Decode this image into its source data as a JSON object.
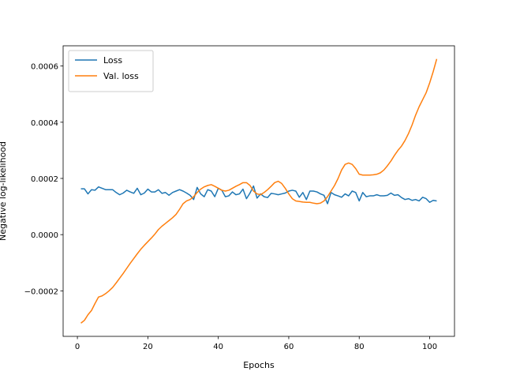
{
  "chart_data": {
    "type": "line",
    "xlabel": "Epochs",
    "ylabel": "Negative log-likelihood",
    "x": [
      1,
      2,
      3,
      4,
      5,
      6,
      7,
      8,
      9,
      10,
      11,
      12,
      13,
      14,
      15,
      16,
      17,
      18,
      19,
      20,
      21,
      22,
      23,
      24,
      25,
      26,
      27,
      28,
      29,
      30,
      31,
      32,
      33,
      34,
      35,
      36,
      37,
      38,
      39,
      40,
      41,
      42,
      43,
      44,
      45,
      46,
      47,
      48,
      49,
      50,
      51,
      52,
      53,
      54,
      55,
      56,
      57,
      58,
      59,
      60,
      61,
      62,
      63,
      64,
      65,
      66,
      67,
      68,
      69,
      70,
      71,
      72,
      73,
      74,
      75,
      76,
      77,
      78,
      79,
      80,
      81,
      82,
      83,
      84,
      85,
      86,
      87,
      88,
      89,
      90,
      91,
      92,
      93,
      94,
      95,
      96,
      97,
      98,
      99,
      100,
      101,
      102
    ],
    "series": [
      {
        "name": "Loss",
        "color": "#1f77b4",
        "values": [
          0.000163,
          0.000163,
          0.000145,
          0.00016,
          0.000158,
          0.00017,
          0.000165,
          0.00016,
          0.00016,
          0.00016,
          0.00015,
          0.000142,
          0.000148,
          0.000158,
          0.000152,
          0.000147,
          0.000165,
          0.000142,
          0.000148,
          0.000162,
          0.000152,
          0.000152,
          0.00016,
          0.000147,
          0.00015,
          0.00014,
          0.00015,
          0.000155,
          0.00016,
          0.000155,
          0.000148,
          0.00014,
          0.000125,
          0.000168,
          0.000145,
          0.000135,
          0.00016,
          0.000155,
          0.000135,
          0.000165,
          0.000158,
          0.000135,
          0.000138,
          0.000152,
          0.000142,
          0.000145,
          0.000162,
          0.000128,
          0.000148,
          0.000173,
          0.00013,
          0.000145,
          0.000135,
          0.000132,
          0.000147,
          0.000145,
          0.000142,
          0.000145,
          0.000148,
          0.000155,
          0.000158,
          0.000155,
          0.000133,
          0.00015,
          0.000125,
          0.000155,
          0.000155,
          0.000152,
          0.000145,
          0.00014,
          0.00011,
          0.00015,
          0.000142,
          0.000138,
          0.000133,
          0.000145,
          0.000138,
          0.000155,
          0.00015,
          0.00012,
          0.00015,
          0.000135,
          0.000138,
          0.000138,
          0.000142,
          0.000138,
          0.000138,
          0.00014,
          0.000148,
          0.00014,
          0.000142,
          0.000132,
          0.000125,
          0.000128,
          0.000122,
          0.000125,
          0.00012,
          0.000133,
          0.000128,
          0.000115,
          0.000122,
          0.00012
        ]
      },
      {
        "name": "Val. loss",
        "color": "#ff7f0e",
        "values": [
          -0.000315,
          -0.000305,
          -0.000285,
          -0.00027,
          -0.000245,
          -0.000222,
          -0.000218,
          -0.00021,
          -0.0002,
          -0.000188,
          -0.000172,
          -0.000155,
          -0.000138,
          -0.00012,
          -0.000102,
          -8.5e-05,
          -6.8e-05,
          -5.2e-05,
          -3.8e-05,
          -2.5e-05,
          -1.2e-05,
          2e-06,
          1.8e-05,
          3e-05,
          4e-05,
          5e-05,
          6e-05,
          7.2e-05,
          9e-05,
          0.00011,
          0.00012,
          0.000125,
          0.000135,
          0.00015,
          0.000162,
          0.00017,
          0.000175,
          0.000178,
          0.000172,
          0.000165,
          0.000158,
          0.000155,
          0.000158,
          0.000165,
          0.000172,
          0.000178,
          0.000185,
          0.000185,
          0.000175,
          0.000155,
          0.000145,
          0.000142,
          0.00015,
          0.00016,
          0.000172,
          0.000185,
          0.00019,
          0.000182,
          0.000165,
          0.000145,
          0.000128,
          0.00012,
          0.000118,
          0.000116,
          0.000115,
          0.000115,
          0.000112,
          0.00011,
          0.000112,
          0.00012,
          0.000135,
          0.000155,
          0.000175,
          0.0002,
          0.00023,
          0.00025,
          0.000255,
          0.00025,
          0.000235,
          0.000215,
          0.000212,
          0.000212,
          0.000212,
          0.000213,
          0.000215,
          0.00022,
          0.00023,
          0.000245,
          0.000262,
          0.000282,
          0.0003,
          0.000315,
          0.000335,
          0.00036,
          0.00039,
          0.000425,
          0.000455,
          0.00048,
          0.000505,
          0.00054,
          0.00058,
          0.000625
        ]
      }
    ],
    "xlim": [
      -4.05,
      107.05
    ],
    "xticks": [
      0,
      20,
      40,
      60,
      80,
      100
    ],
    "ylim": [
      -0.000362,
      0.000672
    ],
    "yticks": [
      {
        "value": -0.0002,
        "label": "−0.0002"
      },
      {
        "value": 0,
        "label": "0.0000"
      },
      0.0002,
      0.0004,
      0.0006
    ],
    "legend": "upper left",
    "grid": false
  }
}
